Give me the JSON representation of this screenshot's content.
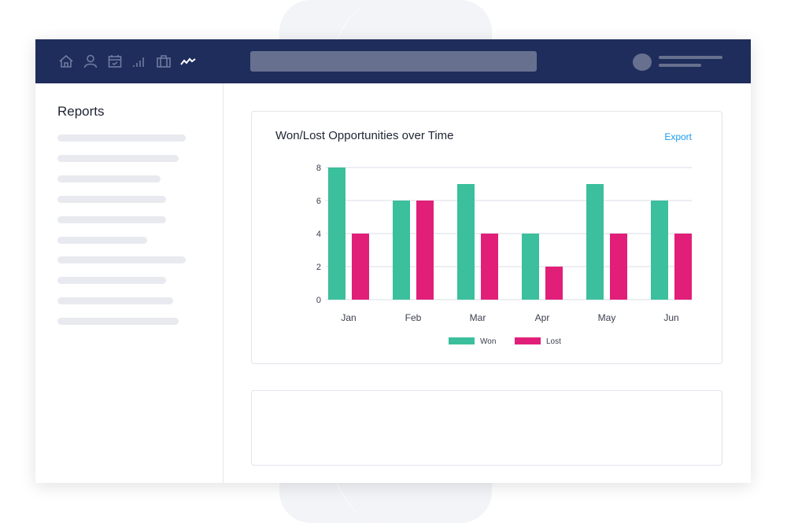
{
  "header": {
    "icons": [
      "home-icon",
      "user-icon",
      "calendar-check-icon",
      "signal-bars-icon",
      "briefcase-icon",
      "activity-icon"
    ],
    "active_icon": "activity-icon"
  },
  "sidebar": {
    "title": "Reports"
  },
  "card": {
    "title": "Won/Lost Opportunities over Time",
    "export_label": "Export"
  },
  "chart_data": {
    "type": "bar",
    "title": "Won/Lost Opportunities over Time",
    "categories": [
      "Jan",
      "Feb",
      "Mar",
      "Apr",
      "May",
      "Jun"
    ],
    "series": [
      {
        "name": "Won",
        "values": [
          8,
          6,
          7,
          4,
          7,
          6
        ],
        "color": "#3bbf9c"
      },
      {
        "name": "Lost",
        "values": [
          4,
          6,
          4,
          2,
          4,
          4
        ],
        "color": "#e11f78"
      }
    ],
    "yticks": [
      0,
      2,
      4,
      6,
      8
    ],
    "ylim": [
      0,
      8
    ],
    "grid": true,
    "legend": "bottom-center"
  }
}
